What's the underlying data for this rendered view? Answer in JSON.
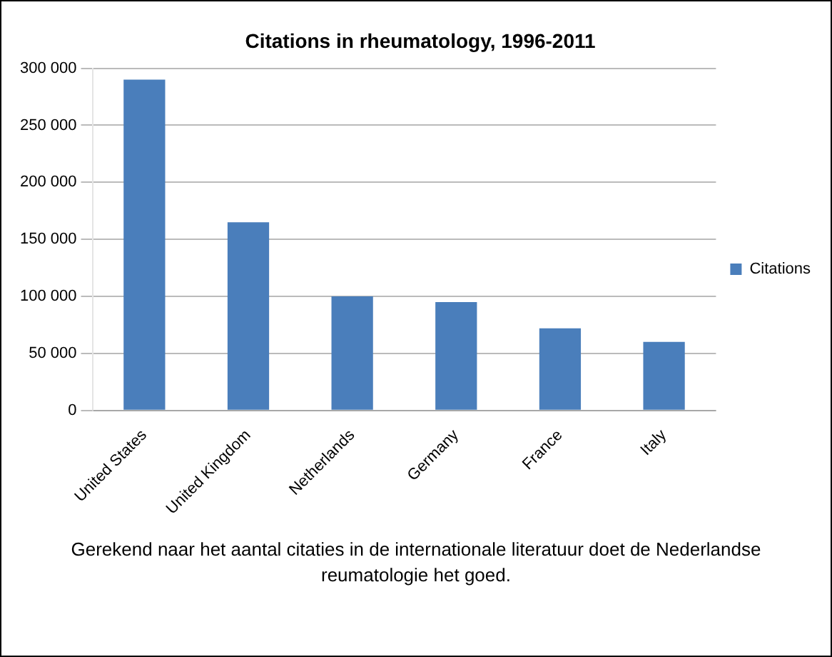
{
  "chart_data": {
    "type": "bar",
    "title": "Citations in rheumatology, 1996-2011",
    "categories": [
      "United States",
      "United Kingdom",
      "Netherlands",
      "Germany",
      "France",
      "Italy"
    ],
    "series": [
      {
        "name": "Citations",
        "color": "#4a7ebb",
        "values": [
          290000,
          165000,
          100000,
          95000,
          72000,
          60000
        ]
      }
    ],
    "ylim": [
      0,
      300000
    ],
    "yticks": [
      {
        "value": 0,
        "label": "0"
      },
      {
        "value": 50000,
        "label": "50 000"
      },
      {
        "value": 100000,
        "label": "100 000"
      },
      {
        "value": 150000,
        "label": "150 000"
      },
      {
        "value": 200000,
        "label": "200 000"
      },
      {
        "value": 250000,
        "label": "250 000"
      },
      {
        "value": 300000,
        "label": "300 000"
      }
    ],
    "grid": "y",
    "legend": "right",
    "annotations": [
      "Gerekend naar het aantal citaties in de internationale literatuur doet de Nederlandse reumatologie het goed."
    ]
  }
}
